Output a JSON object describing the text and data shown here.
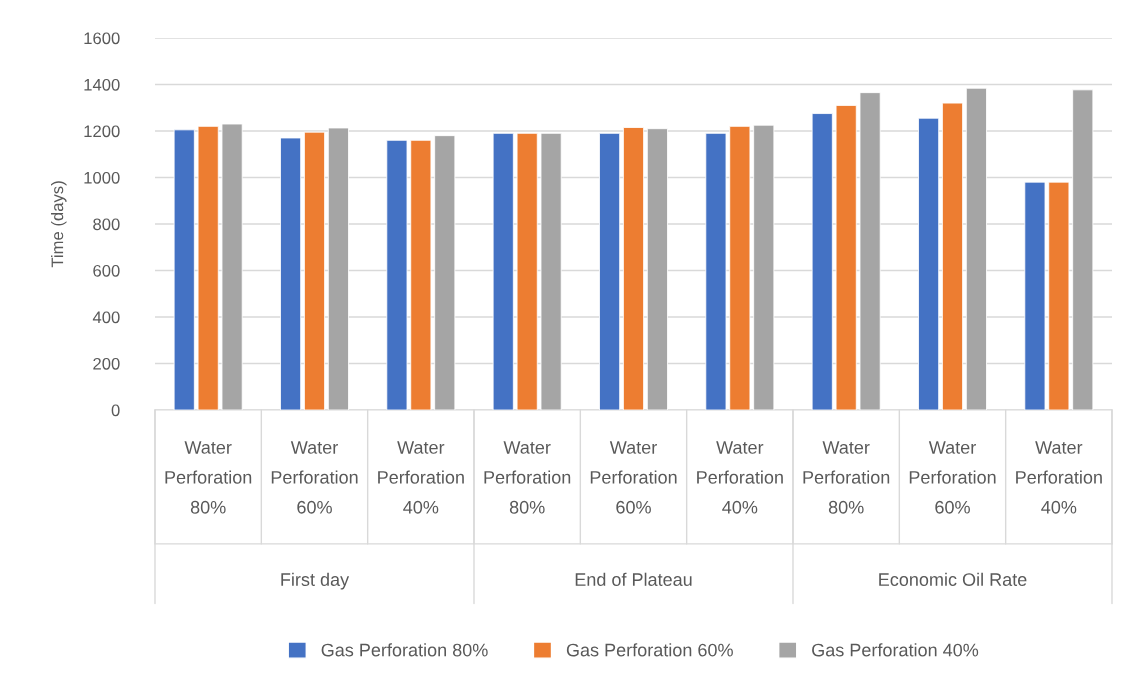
{
  "chart_data": {
    "type": "bar",
    "ylabel": "Time (days)",
    "categories": [
      "Water\nPerforation\n80%",
      "Water\nPerforation\n60%",
      "Water\nPerforation\n40%",
      "Water\nPerforation\n80%",
      "Water\nPerforation\n60%",
      "Water\nPerforation\n40%",
      "Water\nPerforation\n80%",
      "Water\nPerforation\n60%",
      "Water\nPerforation\n40%"
    ],
    "series": [
      {
        "name": "Gas Perforation 80%",
        "color": "#4472c4",
        "values": [
          1205,
          1170,
          1160,
          1190,
          1190,
          1190,
          1275,
          1255,
          980
        ]
      },
      {
        "name": "Gas Perforation 60%",
        "color": "#ed7d31",
        "values": [
          1220,
          1195,
          1160,
          1190,
          1215,
          1220,
          1310,
          1320,
          980
        ]
      },
      {
        "name": "Gas Perforation 40%",
        "color": "#a5a5a5",
        "values": [
          1230,
          1213,
          1180,
          1190,
          1210,
          1225,
          1365,
          1384,
          1377
        ]
      }
    ],
    "annotations": [
      "First day",
      "End of Plateau",
      "Economic Oil Rate"
    ],
    "ylim": [
      0,
      1600
    ],
    "yticks": [
      0,
      200,
      400,
      600,
      800,
      1000,
      1200,
      1400,
      1600
    ],
    "grid": "y",
    "legend": "bottom"
  }
}
